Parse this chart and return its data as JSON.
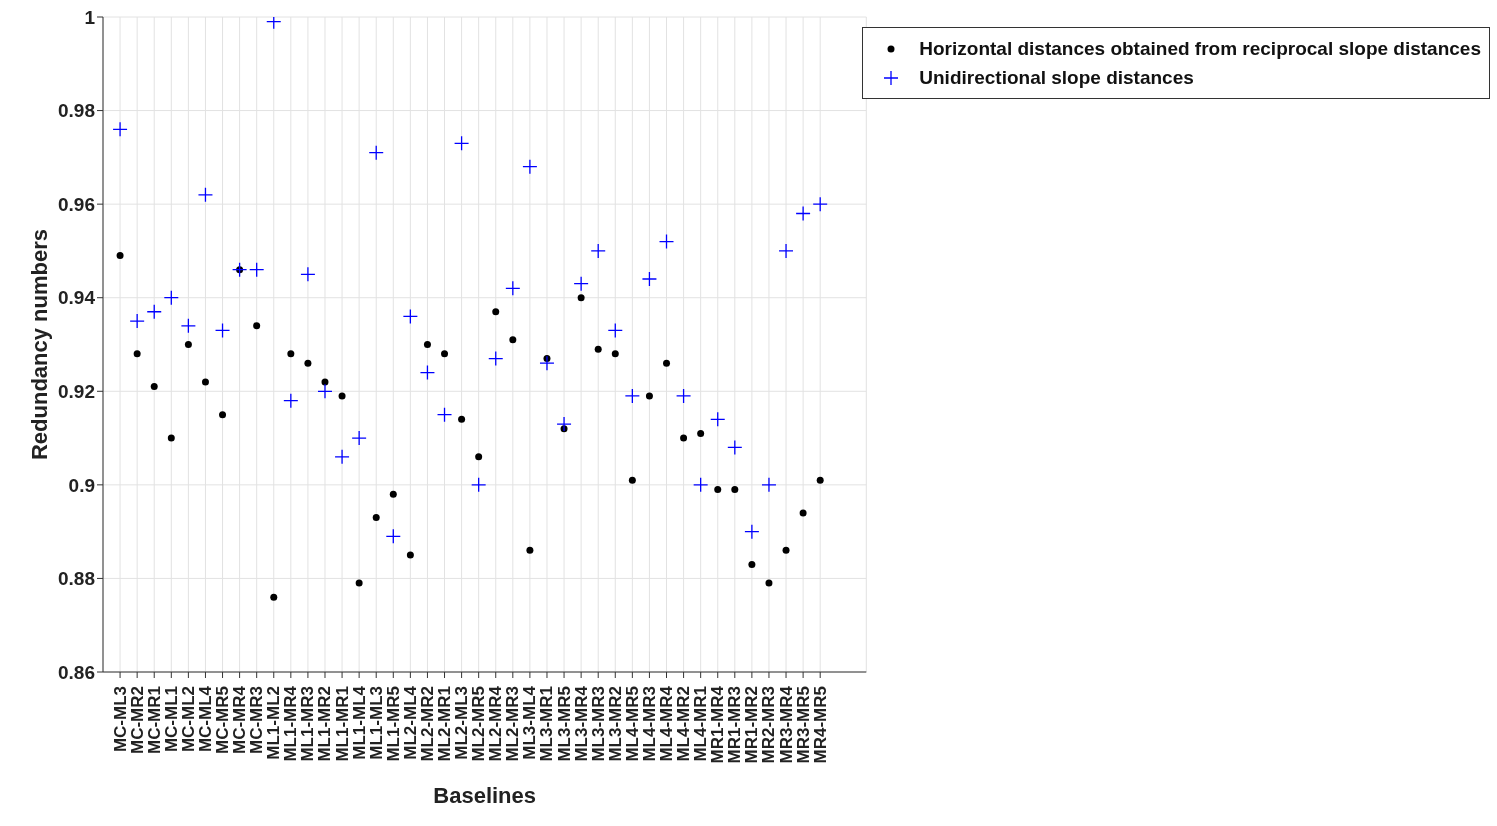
{
  "chart_data": {
    "type": "scatter",
    "xlabel": "Baselines",
    "ylabel": "Redundancy numbers",
    "categories": [
      "MC-ML3",
      "MC-MR2",
      "MC-MR1",
      "MC-ML1",
      "MC-ML2",
      "MC-ML4",
      "MC-MR5",
      "MC-MR4",
      "MC-MR3",
      "ML1-ML2",
      "ML1-MR4",
      "ML1-MR3",
      "ML1-MR2",
      "ML1-MR1",
      "ML1-ML4",
      "ML1-ML3",
      "ML1-MR5",
      "ML2-ML4",
      "ML2-MR2",
      "ML2-MR1",
      "ML2-ML3",
      "ML2-MR5",
      "ML2-MR4",
      "ML2-MR3",
      "ML3-ML4",
      "ML3-MR1",
      "ML3-MR5",
      "ML3-MR4",
      "ML3-MR3",
      "ML3-MR2",
      "ML4-MR5",
      "ML4-MR3",
      "ML4-MR4",
      "ML4-MR2",
      "ML4-MR1",
      "MR1-MR4",
      "MR1-MR3",
      "MR1-MR2",
      "MR2-MR3",
      "MR3-MR4",
      "MR3-MR5",
      "MR4-MR5"
    ],
    "series": [
      {
        "name": "Horizontal distances obtained from reciprocal slope distances",
        "color": "#000000",
        "marker": "circle",
        "values": [
          0.949,
          0.928,
          0.921,
          0.91,
          0.93,
          0.922,
          0.915,
          0.946,
          0.934,
          0.876,
          0.928,
          0.926,
          0.922,
          0.919,
          0.879,
          0.893,
          0.898,
          0.885,
          0.93,
          0.928,
          0.914,
          0.906,
          0.937,
          0.931,
          0.886,
          0.927,
          0.912,
          0.94,
          0.929,
          0.928,
          0.901,
          0.919,
          0.926,
          0.91,
          0.911,
          0.899,
          0.899,
          0.883,
          0.879,
          0.886,
          0.894,
          0.901
        ]
      },
      {
        "name": "Unidirectional slope distances",
        "color": "#0000ff",
        "marker": "cross",
        "values": [
          0.976,
          0.935,
          0.937,
          0.94,
          0.934,
          0.962,
          0.933,
          0.946,
          0.946,
          0.999,
          0.918,
          0.945,
          0.92,
          0.906,
          0.91,
          0.971,
          0.889,
          0.936,
          0.924,
          0.915,
          0.973,
          0.9,
          0.927,
          0.942,
          0.968,
          0.926,
          0.913,
          0.943,
          0.95,
          0.933,
          0.919,
          0.944,
          0.952,
          0.919,
          0.9,
          0.914,
          0.908,
          0.89,
          0.9,
          0.95,
          0.958,
          0.96
        ]
      }
    ],
    "ylim": [
      0.86,
      1
    ],
    "yticks": [
      0.86,
      0.88,
      0.9,
      0.92,
      0.94,
      0.96,
      0.98,
      1
    ],
    "grid": true,
    "legend": "top right"
  }
}
